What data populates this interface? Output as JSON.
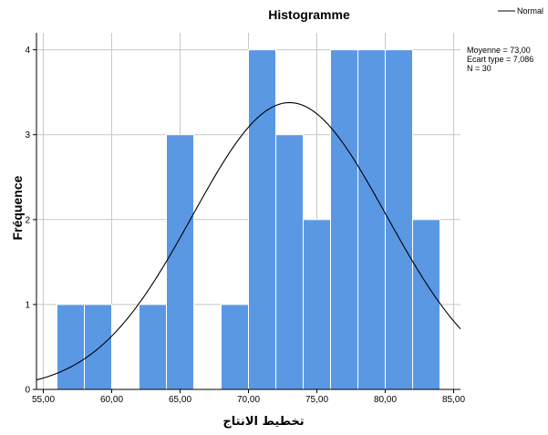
{
  "chart_data": {
    "type": "bar",
    "title": "Histogramme",
    "xlabel": "تخطيط الانتاج",
    "ylabel": "Fréquence",
    "bin_width": 2,
    "bins": [
      {
        "start": 56,
        "end": 58,
        "count": 1
      },
      {
        "start": 58,
        "end": 60,
        "count": 1
      },
      {
        "start": 60,
        "end": 62,
        "count": 0
      },
      {
        "start": 62,
        "end": 64,
        "count": 1
      },
      {
        "start": 64,
        "end": 66,
        "count": 3
      },
      {
        "start": 66,
        "end": 68,
        "count": 0
      },
      {
        "start": 68,
        "end": 70,
        "count": 1
      },
      {
        "start": 70,
        "end": 72,
        "count": 4
      },
      {
        "start": 72,
        "end": 74,
        "count": 3
      },
      {
        "start": 74,
        "end": 76,
        "count": 2
      },
      {
        "start": 76,
        "end": 78,
        "count": 4
      },
      {
        "start": 78,
        "end": 80,
        "count": 4
      },
      {
        "start": 80,
        "end": 82,
        "count": 4
      },
      {
        "start": 82,
        "end": 84,
        "count": 2
      }
    ],
    "xlim": [
      54.5,
      85.5
    ],
    "ylim": [
      0,
      4.2
    ],
    "xticks": [
      55,
      60,
      65,
      70,
      75,
      80,
      85
    ],
    "xtick_labels": [
      "55,00",
      "60,00",
      "65,00",
      "70,00",
      "75,00",
      "80,00",
      "85,00"
    ],
    "yticks": [
      0,
      1,
      2,
      3,
      4
    ],
    "ytick_labels": [
      "0",
      "1",
      "2",
      "3",
      "4"
    ],
    "normal_curve": {
      "mean": 73.0,
      "sd": 7.086,
      "n": 30
    },
    "stats_lines": [
      "Moyenne = 73,00",
      "Ecart type = 7,086",
      "N = 30"
    ],
    "legend_label": "Normal",
    "grid": true,
    "colors": {
      "bar": "#5a98e4",
      "bar_edge": "#ffffff",
      "curve": "#000000",
      "grid": "#c8c8c8",
      "frame": "#000000"
    }
  }
}
